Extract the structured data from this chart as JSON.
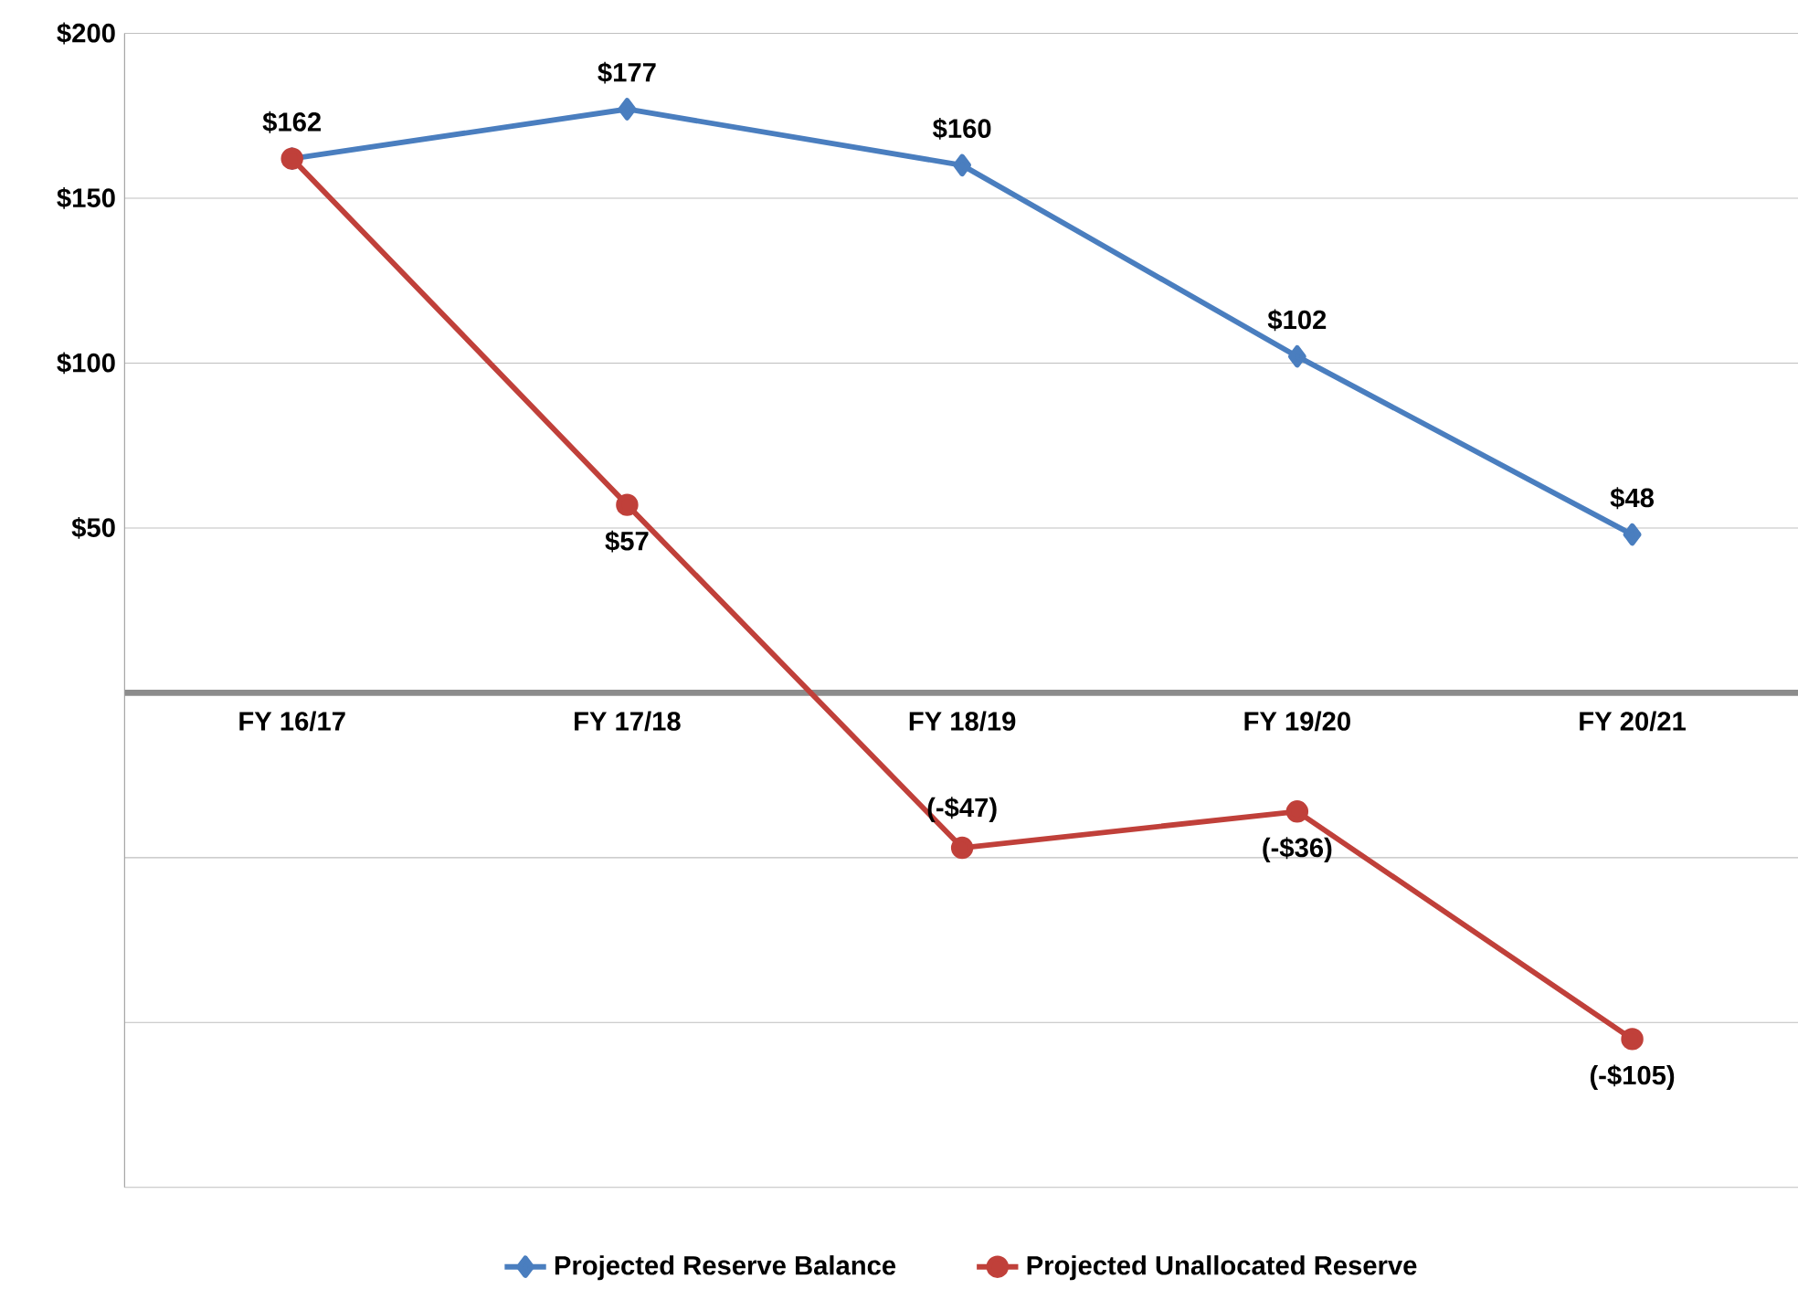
{
  "chart_data": {
    "type": "line",
    "categories": [
      "FY 16/17",
      "FY 17/18",
      "FY 18/19",
      "FY 19/20",
      "FY 20/21"
    ],
    "series": [
      {
        "name": "Projected Reserve Balance",
        "color": "#4a7ebf",
        "marker": "diamond",
        "values": [
          162,
          177,
          160,
          102,
          48
        ],
        "value_labels": [
          "$162",
          "$177",
          "$160",
          "$102",
          "$48"
        ]
      },
      {
        "name": "Projected Unallocated Reserve",
        "color": "#c0403a",
        "marker": "circle",
        "values": [
          162,
          57,
          -47,
          -36,
          -105
        ],
        "value_labels": [
          null,
          "$57",
          "(-$47)",
          "(-$36)",
          "(-$105)"
        ]
      }
    ],
    "ylim": [
      -150,
      200
    ],
    "yticks": [
      {
        "value": -150,
        "label": null
      },
      {
        "value": -100,
        "label": null
      },
      {
        "value": -50,
        "label": null
      },
      {
        "value": 0,
        "label": null
      },
      {
        "value": 50,
        "label": "$50"
      },
      {
        "value": 100,
        "label": "$100"
      },
      {
        "value": 150,
        "label": "$150"
      },
      {
        "value": 200,
        "label": "$200"
      }
    ],
    "grid": "y",
    "legend": "bottom"
  }
}
